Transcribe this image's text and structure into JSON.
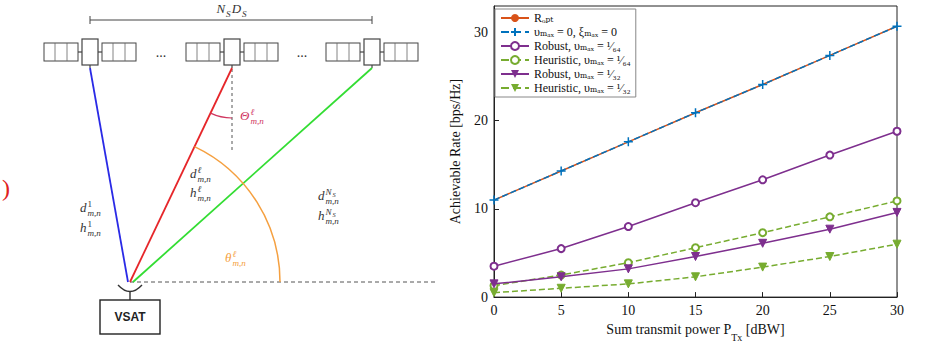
{
  "diagram": {
    "span_label": [
      {
        "base": "N",
        "sub": "S"
      },
      {
        "base": "D",
        "sub": "S"
      }
    ],
    "ellipsis": "...",
    "terminal": "VSAT",
    "links": [
      {
        "color": "#2a2ae6",
        "distance": {
          "base": "d",
          "sup": "1",
          "sub": "m,n"
        },
        "channel": {
          "base": "h",
          "sup": "1",
          "sub": "m,n"
        }
      },
      {
        "color": "#e6262a",
        "distance": {
          "base": "d",
          "sup": "ℓ",
          "sub": "m,n"
        },
        "channel": {
          "base": "h",
          "sup": "ℓ",
          "sub": "m,n"
        }
      },
      {
        "color": "#33dd33",
        "distance": {
          "base": "d",
          "sup": {
            "base": "N",
            "sub": "S"
          },
          "sub": "m,n"
        },
        "channel": {
          "base": "h",
          "sup": {
            "base": "N",
            "sub": "S"
          },
          "sub": "m,n"
        }
      }
    ],
    "off_nadir_angle": {
      "base": "Θ",
      "sup": "ℓ",
      "sub": "m,n",
      "color": "#d0365f"
    },
    "elevation_angle": {
      "base": "θ",
      "sup": "ℓ",
      "sub": "m,n",
      "color": "#f5a040"
    },
    "edge_mark": {
      "text": ")",
      "color": "#e02020"
    }
  },
  "chart_data": {
    "type": "line",
    "xlabel": {
      "base": "Sum transmit power P",
      "sub": "Tx",
      "after": " [dBW]"
    },
    "ylabel": "Achievable Rate [bps/Hz]",
    "x": [
      0,
      5,
      10,
      15,
      20,
      25,
      30
    ],
    "xlim": [
      0,
      30
    ],
    "xticks": [
      0,
      5,
      10,
      15,
      20,
      25,
      30
    ],
    "ylim": [
      0,
      33
    ],
    "yticks": [
      0,
      10,
      20,
      30
    ],
    "grid": false,
    "legend": "upper left",
    "series": [
      {
        "name": "Rₒₚₜ",
        "color": "#d95319",
        "line_style": "solid",
        "marker": "none",
        "values": [
          11,
          14.3,
          17.6,
          20.9,
          24.1,
          27.4,
          30.7
        ]
      },
      {
        "name": "υₘₐₓ = 0, ξₘₐₓ = 0",
        "color": "#0072bd",
        "line_style": "dashed",
        "marker": "plus",
        "values": [
          11,
          14.3,
          17.6,
          20.9,
          24.1,
          27.4,
          30.7
        ]
      },
      {
        "name": "Robust, υₘₐₓ = ¹⁄₆₄",
        "color": "#7e2f8e",
        "line_style": "solid",
        "marker": "circle_open",
        "values": [
          3.5,
          5.5,
          8,
          10.7,
          13.3,
          16.1,
          18.8
        ]
      },
      {
        "name": "Heuristic, υₘₐₓ = ¹⁄₆₄",
        "color": "#77ac30",
        "line_style": "dashed",
        "marker": "circle_open",
        "values": [
          1.3,
          2.5,
          3.9,
          5.6,
          7.3,
          9.1,
          10.9
        ]
      },
      {
        "name": "Robust, υₘₐₓ = ¹⁄₃₂",
        "color": "#7e2f8e",
        "line_style": "solid",
        "marker": "triangle_down",
        "values": [
          1.5,
          2.3,
          3.2,
          4.6,
          6.1,
          7.7,
          9.6
        ]
      },
      {
        "name": "Heuristic, υₘₐₓ = ¹⁄₃₂",
        "color": "#77ac30",
        "line_style": "dashed",
        "marker": "triangle_down",
        "values": [
          0.5,
          1.0,
          1.5,
          2.3,
          3.4,
          4.6,
          6.0
        ]
      }
    ]
  }
}
